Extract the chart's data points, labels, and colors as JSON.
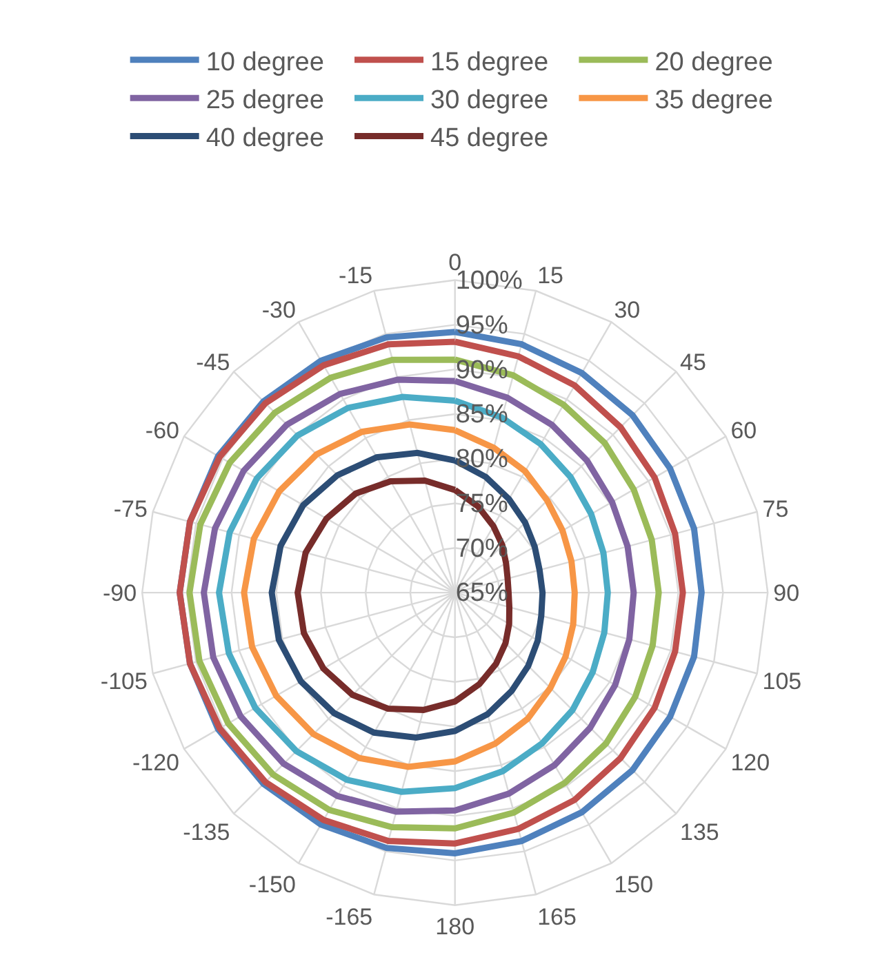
{
  "chart_data": {
    "type": "radar",
    "categories": [
      "0",
      "15",
      "30",
      "45",
      "60",
      "75",
      "90",
      "105",
      "120",
      "135",
      "150",
      "165",
      "180",
      "-165",
      "-150",
      "-135",
      "-120",
      "-105",
      "-90",
      "-75",
      "-60",
      "-45",
      "-30",
      "-15"
    ],
    "ylim": [
      65,
      100
    ],
    "yticks": [
      {
        "value": 65,
        "label": "65%"
      },
      {
        "value": 70,
        "label": "70%"
      },
      {
        "value": 75,
        "label": "75%"
      },
      {
        "value": 80,
        "label": "80%"
      },
      {
        "value": 85,
        "label": "85%"
      },
      {
        "value": 90,
        "label": "90%"
      },
      {
        "value": 95,
        "label": "95%"
      },
      {
        "value": 100,
        "label": "100%"
      }
    ],
    "grid": true,
    "legend": "top",
    "marker": "none",
    "line_style": "solid",
    "series": [
      {
        "name": "10 degree",
        "color": "#4f81bd",
        "values": [
          94.2,
          93.8,
          93.4,
          93.1,
          92.8,
          92.7,
          92.6,
          92.7,
          92.8,
          93.1,
          93.4,
          93.8,
          94.2,
          94.6,
          95.0,
          95.3,
          95.6,
          95.7,
          95.8,
          95.7,
          95.6,
          95.3,
          95.0,
          94.6
        ]
      },
      {
        "name": "15 degree",
        "color": "#c0504d",
        "values": [
          93.1,
          92.4,
          91.8,
          91.2,
          90.8,
          90.5,
          90.5,
          90.5,
          90.8,
          91.2,
          91.8,
          92.4,
          93.1,
          93.8,
          94.4,
          95.0,
          95.4,
          95.7,
          95.8,
          95.7,
          95.4,
          95.0,
          94.4,
          93.8
        ]
      },
      {
        "name": "20 degree",
        "color": "#9bbb59",
        "values": [
          91.1,
          90.2,
          89.3,
          88.7,
          88.1,
          87.8,
          87.8,
          87.9,
          88.3,
          88.9,
          89.6,
          90.5,
          91.4,
          92.2,
          93.1,
          93.8,
          94.3,
          94.6,
          94.7,
          94.5,
          94.1,
          93.5,
          92.8,
          92.0
        ]
      },
      {
        "name": "25 degree",
        "color": "#8064a2",
        "values": [
          88.7,
          87.6,
          86.7,
          85.9,
          85.3,
          85.0,
          85.0,
          85.2,
          85.7,
          86.4,
          87.3,
          88.3,
          89.4,
          90.4,
          91.3,
          92.1,
          92.7,
          93.0,
          93.1,
          92.8,
          92.3,
          91.6,
          90.7,
          89.7
        ]
      },
      {
        "name": "30 degree",
        "color": "#4bacc6",
        "values": [
          86.5,
          85.3,
          84.2,
          83.3,
          82.6,
          82.2,
          82.1,
          82.3,
          82.8,
          83.6,
          84.5,
          85.7,
          86.9,
          88.1,
          89.2,
          90.1,
          90.8,
          91.2,
          91.4,
          91.1,
          90.6,
          89.9,
          88.9,
          87.7
        ]
      },
      {
        "name": "35 degree",
        "color": "#f79646",
        "values": [
          83.2,
          81.8,
          80.7,
          79.6,
          78.9,
          78.5,
          78.4,
          78.7,
          79.3,
          80.1,
          81.3,
          82.5,
          83.9,
          85.2,
          86.4,
          87.4,
          88.1,
          88.5,
          88.6,
          88.3,
          87.7,
          86.9,
          85.8,
          84.5
        ]
      },
      {
        "name": "40 degree",
        "color": "#2c4d75",
        "values": [
          79.8,
          78.4,
          77.1,
          76.1,
          75.3,
          74.8,
          74.8,
          75.0,
          75.7,
          76.6,
          77.7,
          79.1,
          80.5,
          81.8,
          83.1,
          84.1,
          84.9,
          85.4,
          85.5,
          85.2,
          84.6,
          83.6,
          82.5,
          81.2
        ]
      },
      {
        "name": "45 degree",
        "color": "#772c2a",
        "values": [
          76.5,
          75.0,
          73.6,
          72.5,
          71.6,
          71.1,
          71.0,
          71.3,
          72.0,
          73.0,
          74.2,
          75.6,
          77.2,
          78.6,
          80.0,
          81.2,
          82.0,
          82.5,
          82.6,
          82.3,
          81.6,
          80.7,
          79.4,
          78.0
        ]
      }
    ]
  }
}
